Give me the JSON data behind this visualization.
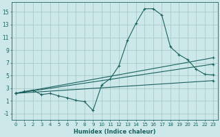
{
  "xlabel": "Humidex (Indice chaleur)",
  "bg_color": "#cce8e8",
  "grid_color": "#aacaca",
  "line_color": "#1a6060",
  "xlim": [
    -0.5,
    23.5
  ],
  "ylim": [
    -2.0,
    16.5
  ],
  "xticks": [
    0,
    1,
    2,
    3,
    4,
    5,
    6,
    7,
    8,
    9,
    10,
    11,
    12,
    13,
    14,
    15,
    16,
    17,
    18,
    19,
    20,
    21,
    22,
    23
  ],
  "yticks": [
    -1,
    1,
    3,
    5,
    7,
    9,
    11,
    13,
    15
  ],
  "series1_x": [
    0,
    1,
    2,
    3,
    4,
    5,
    6,
    7,
    8,
    9,
    10,
    11,
    12,
    13,
    14,
    15,
    16,
    17,
    18,
    19,
    20,
    21,
    22,
    23
  ],
  "series1_y": [
    2.2,
    2.5,
    2.7,
    2.0,
    2.2,
    1.8,
    1.5,
    1.1,
    0.9,
    -0.5,
    3.5,
    4.5,
    6.5,
    10.5,
    13.2,
    15.5,
    15.5,
    14.5,
    9.5,
    8.3,
    7.5,
    6.0,
    5.2,
    5.1
  ],
  "series2_x": [
    0,
    23
  ],
  "series2_y": [
    2.2,
    7.8
  ],
  "series3_x": [
    0,
    23
  ],
  "series3_y": [
    2.2,
    6.8
  ],
  "series4_x": [
    0,
    23
  ],
  "series4_y": [
    2.2,
    4.2
  ],
  "marker": "+"
}
